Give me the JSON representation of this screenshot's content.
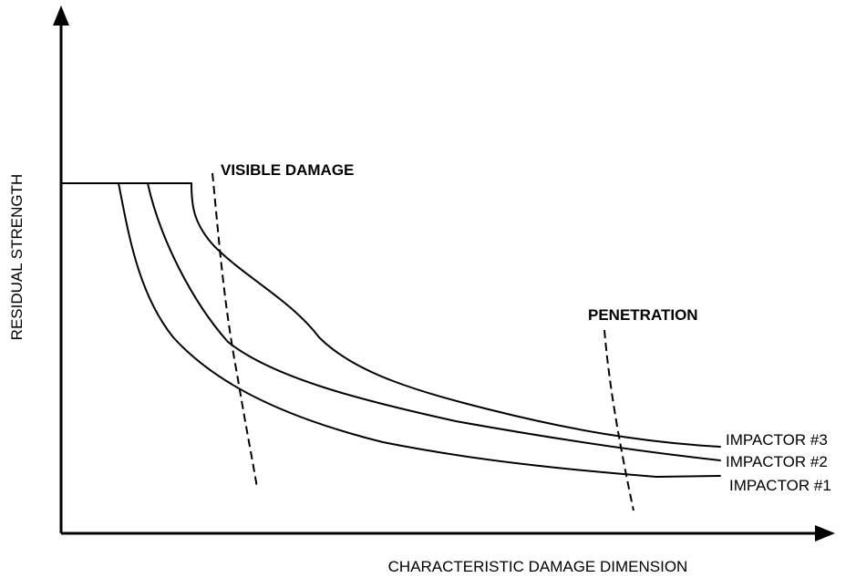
{
  "diagram": {
    "y_axis_label": "RESIDUAL STRENGTH",
    "x_axis_label": "CHARACTERISTIC DAMAGE DIMENSION",
    "annotations": [
      "VISIBLE DAMAGE",
      "PENETRATION"
    ],
    "curves": [
      "IMPACTOR #3",
      "IMPACTOR #2",
      "IMPACTOR #1"
    ]
  }
}
